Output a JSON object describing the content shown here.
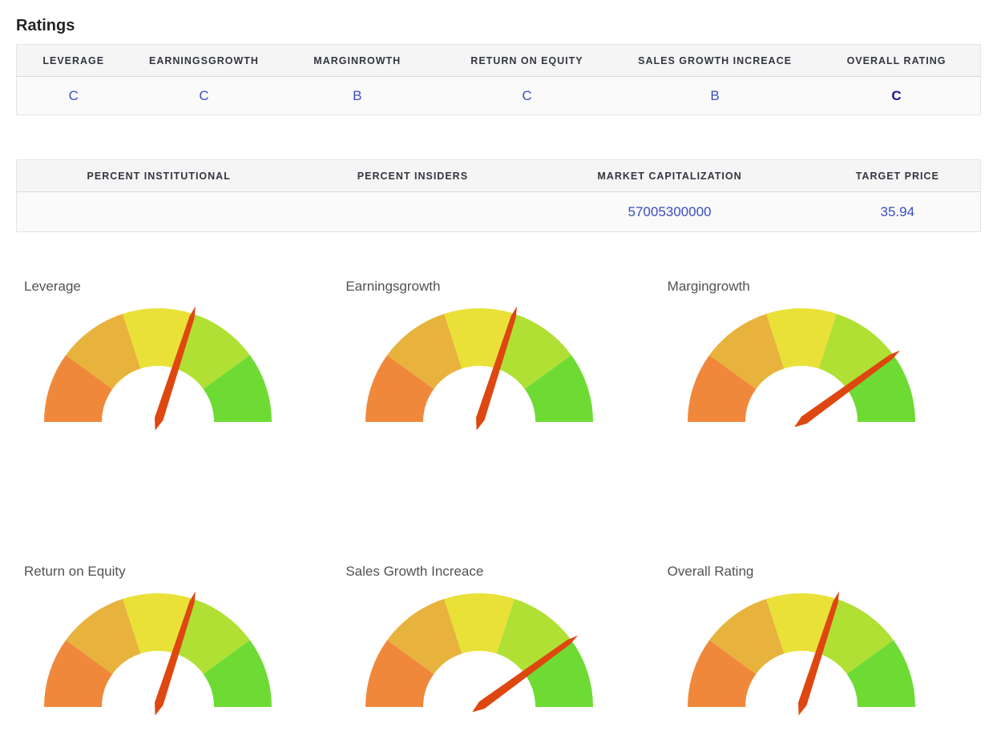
{
  "page": {
    "title": "Ratings"
  },
  "ratings_table": {
    "columns": [
      "LEVERAGE",
      "EARNINGSGROWTH",
      "MARGINROWTH",
      "RETURN ON EQUITY",
      "SALES GROWTH INCREACE",
      "OVERALL RATING"
    ],
    "values": [
      "C",
      "C",
      "B",
      "C",
      "B",
      "C"
    ]
  },
  "stats_table": {
    "columns": [
      "PERCENT INSTITUTIONAL",
      "PERCENT INSIDERS",
      "MARKET CAPITALIZATION",
      "TARGET PRICE"
    ],
    "values": [
      "",
      "",
      "57005300000",
      "35.94"
    ]
  },
  "colors": {
    "value_text": "#3B4CC4",
    "value_text_emphasis": "#161690",
    "header_background": "#f5f5f6",
    "row_background": "#fafafa",
    "gauge_segments": [
      "#F0883B",
      "#E7B33C",
      "#EAE138",
      "#B0E034",
      "#6DDB34"
    ],
    "gauge_needle": "#DE4710"
  },
  "chart_data": [
    {
      "type": "gauge",
      "title": "Leverage",
      "rating": "C",
      "value": 0.6,
      "min": 0,
      "max": 1,
      "needle_color": "#DE4710",
      "segments": [
        {
          "from": 0.0,
          "to": 0.2,
          "color": "#F0883B"
        },
        {
          "from": 0.2,
          "to": 0.4,
          "color": "#E7B33C"
        },
        {
          "from": 0.4,
          "to": 0.6,
          "color": "#EAE138"
        },
        {
          "from": 0.6,
          "to": 0.8,
          "color": "#B0E034"
        },
        {
          "from": 0.8,
          "to": 1.0,
          "color": "#6DDB34"
        }
      ]
    },
    {
      "type": "gauge",
      "title": "Earningsgrowth",
      "rating": "C",
      "value": 0.6,
      "min": 0,
      "max": 1,
      "needle_color": "#DE4710",
      "segments": [
        {
          "from": 0.0,
          "to": 0.2,
          "color": "#F0883B"
        },
        {
          "from": 0.2,
          "to": 0.4,
          "color": "#E7B33C"
        },
        {
          "from": 0.4,
          "to": 0.6,
          "color": "#EAE138"
        },
        {
          "from": 0.6,
          "to": 0.8,
          "color": "#B0E034"
        },
        {
          "from": 0.8,
          "to": 1.0,
          "color": "#6DDB34"
        }
      ]
    },
    {
      "type": "gauge",
      "title": "Margingrowth",
      "rating": "B",
      "value": 0.8,
      "min": 0,
      "max": 1,
      "needle_color": "#DE4710",
      "segments": [
        {
          "from": 0.0,
          "to": 0.2,
          "color": "#F0883B"
        },
        {
          "from": 0.2,
          "to": 0.4,
          "color": "#E7B33C"
        },
        {
          "from": 0.4,
          "to": 0.6,
          "color": "#EAE138"
        },
        {
          "from": 0.6,
          "to": 0.8,
          "color": "#B0E034"
        },
        {
          "from": 0.8,
          "to": 1.0,
          "color": "#6DDB34"
        }
      ]
    },
    {
      "type": "gauge",
      "title": "Return on Equity",
      "rating": "C",
      "value": 0.6,
      "min": 0,
      "max": 1,
      "needle_color": "#DE4710",
      "segments": [
        {
          "from": 0.0,
          "to": 0.2,
          "color": "#F0883B"
        },
        {
          "from": 0.2,
          "to": 0.4,
          "color": "#E7B33C"
        },
        {
          "from": 0.4,
          "to": 0.6,
          "color": "#EAE138"
        },
        {
          "from": 0.6,
          "to": 0.8,
          "color": "#B0E034"
        },
        {
          "from": 0.8,
          "to": 1.0,
          "color": "#6DDB34"
        }
      ]
    },
    {
      "type": "gauge",
      "title": "Sales Growth Increace",
      "rating": "B",
      "value": 0.8,
      "min": 0,
      "max": 1,
      "needle_color": "#DE4710",
      "segments": [
        {
          "from": 0.0,
          "to": 0.2,
          "color": "#F0883B"
        },
        {
          "from": 0.2,
          "to": 0.4,
          "color": "#E7B33C"
        },
        {
          "from": 0.4,
          "to": 0.6,
          "color": "#EAE138"
        },
        {
          "from": 0.6,
          "to": 0.8,
          "color": "#B0E034"
        },
        {
          "from": 0.8,
          "to": 1.0,
          "color": "#6DDB34"
        }
      ]
    },
    {
      "type": "gauge",
      "title": "Overall Rating",
      "rating": "C",
      "value": 0.6,
      "min": 0,
      "max": 1,
      "needle_color": "#DE4710",
      "segments": [
        {
          "from": 0.0,
          "to": 0.2,
          "color": "#F0883B"
        },
        {
          "from": 0.2,
          "to": 0.4,
          "color": "#E7B33C"
        },
        {
          "from": 0.4,
          "to": 0.6,
          "color": "#EAE138"
        },
        {
          "from": 0.6,
          "to": 0.8,
          "color": "#B0E034"
        },
        {
          "from": 0.8,
          "to": 1.0,
          "color": "#6DDB34"
        }
      ]
    }
  ]
}
